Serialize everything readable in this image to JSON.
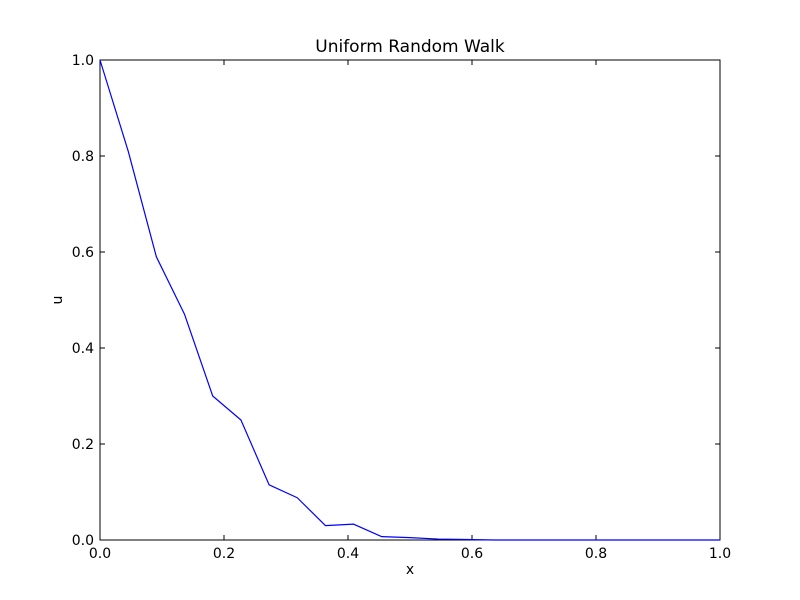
{
  "chart_data": {
    "type": "line",
    "title": "Uniform Random Walk",
    "xlabel": "x",
    "ylabel": "u",
    "xlim": [
      0.0,
      1.0
    ],
    "ylim": [
      0.0,
      1.0
    ],
    "xticks": [
      "0.0",
      "0.2",
      "0.4",
      "0.6",
      "0.8",
      "1.0"
    ],
    "yticks": [
      "0.0",
      "0.2",
      "0.4",
      "0.6",
      "0.8",
      "1.0"
    ],
    "grid": false,
    "series": [
      {
        "color": "#0000ff",
        "x": [
          0.0,
          0.0455,
          0.0909,
          0.1364,
          0.1818,
          0.2273,
          0.2727,
          0.3182,
          0.3636,
          0.4091,
          0.4545,
          0.5,
          0.5455,
          0.5909,
          0.6364,
          0.6818,
          0.7273,
          0.7727,
          0.8182,
          0.8636,
          0.9091,
          0.9545,
          1.0
        ],
        "y": [
          1.0,
          0.81,
          0.59,
          0.47,
          0.3,
          0.25,
          0.115,
          0.088,
          0.03,
          0.033,
          0.007,
          0.005,
          0.002,
          0.001,
          0.0,
          0.0,
          0.0,
          0.0,
          0.0,
          0.0,
          0.0,
          0.0,
          0.0
        ]
      }
    ]
  }
}
